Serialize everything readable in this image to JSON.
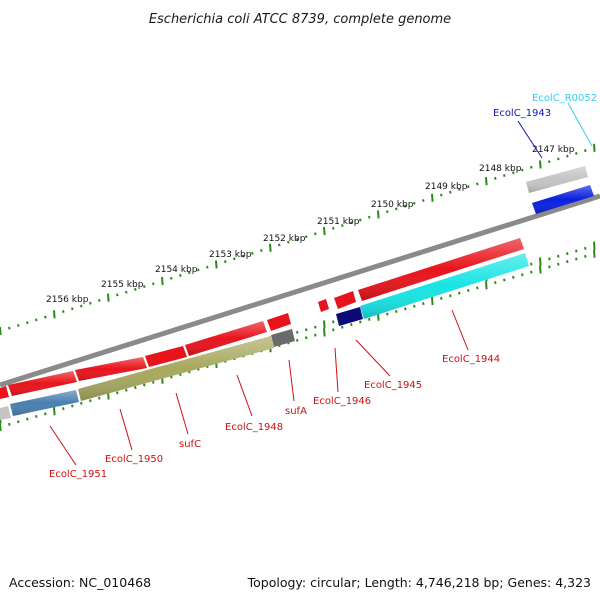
{
  "title": "Escherichia coli ATCC 8739, complete genome",
  "footer": {
    "accession": "Accession: NC_010468",
    "summary": "Topology: circular; Length: 4,746,218 bp; Genes: 4,323"
  },
  "scale_labels": [
    "2147 kbp",
    "2148 kbp",
    "2149 kbp",
    "2150 kbp",
    "2151 kbp",
    "2152 kbp",
    "2153 kbp",
    "2154 kbp",
    "2155 kbp",
    "2156 kbp"
  ],
  "gene_labels": [
    {
      "text": "EcolC_R0052",
      "color": "#33ccee"
    },
    {
      "text": "EcolC_1943",
      "color": "#1515b0"
    },
    {
      "text": "EcolC_1944",
      "color": "#cc1111"
    },
    {
      "text": "EcolC_1945",
      "color": "#cc1111"
    },
    {
      "text": "EcolC_1946",
      "color": "#cc1111"
    },
    {
      "text": "sufA",
      "color": "#cc1111"
    },
    {
      "text": "EcolC_1948",
      "color": "#cc1111"
    },
    {
      "text": "sufC",
      "color": "#cc1111"
    },
    {
      "text": "EcolC_1950",
      "color": "#cc1111"
    },
    {
      "text": "EcolC_1951",
      "color": "#cc1111"
    }
  ],
  "colors": {
    "cds": "#e8141c",
    "backbone": "#8a8a8a",
    "ticks": "#2a8a1a",
    "rrna_gray": "#c4c4c4",
    "blue_gene": "#0a20e0",
    "cyan_gene": "#18e4e4",
    "navy_gene": "#0a0a78",
    "steel_gene": "#4a7fb0",
    "olive_gene": "#a8a860",
    "dark_gray": "#6a6a6a"
  }
}
